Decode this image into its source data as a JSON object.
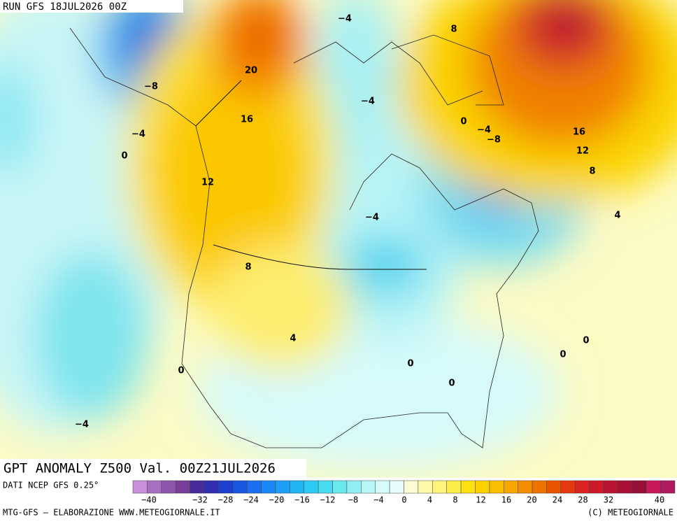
{
  "header": "RUN GFS 18JUL2026 00Z",
  "map_title": "GPT ANOMALY Z500 Val. 00Z21JUL2026",
  "contour_labels": [
    "20",
    "16",
    "12",
    "8",
    "4",
    "0",
    "−4",
    "−8",
    "0",
    "−4",
    "−4",
    "8",
    "−4",
    "0",
    "−4",
    "−8",
    "16",
    "12",
    "8",
    "4",
    "−4",
    "0",
    "0",
    "0",
    "0"
  ],
  "colorbar": {
    "source": "DATI NCEP GFS 0.25°",
    "colors": [
      "#c98fd8",
      "#a96ec0",
      "#8f55aa",
      "#7a3f98",
      "#4a2a9a",
      "#2f2fb0",
      "#1e3fcf",
      "#1a57e0",
      "#1c6ff0",
      "#1b86f5",
      "#1c9ef8",
      "#20b4f6",
      "#2ccaf2",
      "#45dcf0",
      "#6ae8f0",
      "#92f0f2",
      "#b6f6f6",
      "#d4fafa",
      "#e6fcfc",
      "#fbfbd4",
      "#fcfaa6",
      "#fdf47c",
      "#fdeb4a",
      "#fde010",
      "#fbcf00",
      "#f8bc00",
      "#f6a600",
      "#f28e00",
      "#ee7200",
      "#e95400",
      "#e33a10",
      "#da2520",
      "#cc1a2a",
      "#bb1432",
      "#a81036",
      "#961038",
      "#c81a5a",
      "#b01a60"
    ],
    "ticks": [
      {
        "value": -40,
        "label": "−40"
      },
      {
        "value": -32,
        "label": "−32"
      },
      {
        "value": -28,
        "label": "−28"
      },
      {
        "value": -24,
        "label": "−24"
      },
      {
        "value": -20,
        "label": "−20"
      },
      {
        "value": -16,
        "label": "−16"
      },
      {
        "value": -12,
        "label": "−12"
      },
      {
        "value": -8,
        "label": "−8"
      },
      {
        "value": -4,
        "label": "−4"
      },
      0,
      4,
      8,
      12,
      16,
      20,
      24,
      28,
      32,
      40
    ]
  },
  "footer": {
    "left": "MTG-GFS — ELABORAZIONE WWW.METEOGIORNALE.IT",
    "right": "(C) METEOGIORNALE"
  }
}
